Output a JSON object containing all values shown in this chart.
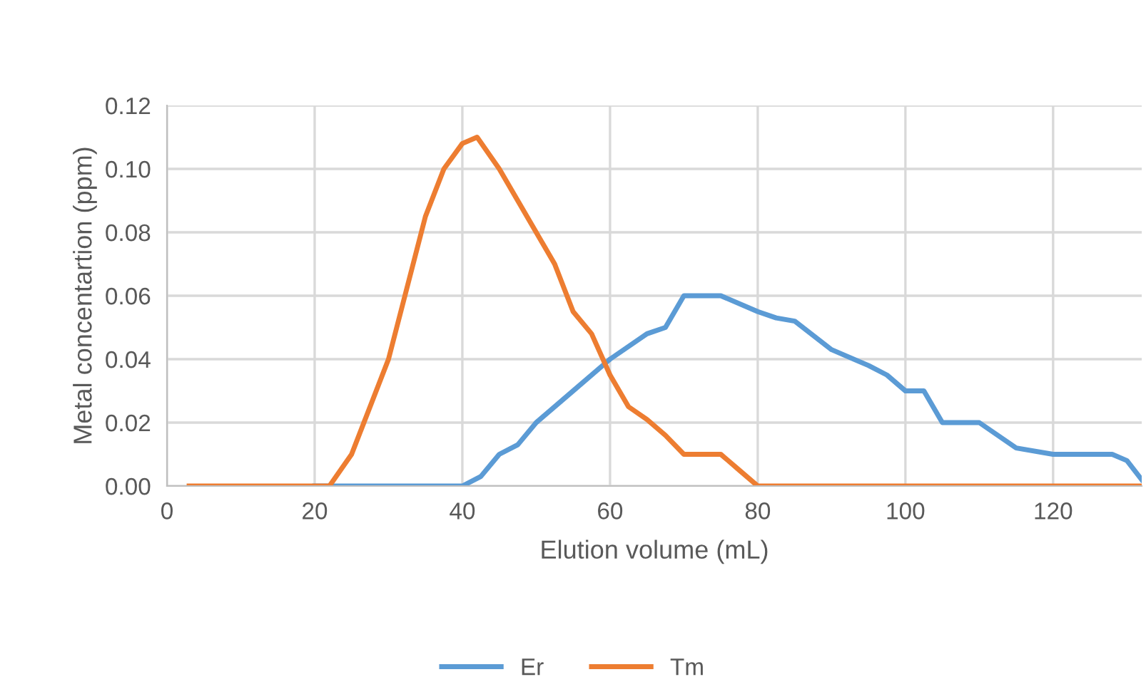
{
  "chart_data": {
    "type": "line",
    "xlabel": "Elution volume (mL)",
    "ylabel": "Metal concentartion (ppm)",
    "xlim": [
      0,
      132
    ],
    "xticks": [
      0,
      20,
      40,
      60,
      80,
      100,
      120
    ],
    "ylim": [
      0,
      0.12
    ],
    "yticks": [
      {
        "value": 0,
        "label": "0.00"
      },
      {
        "value": 0.02,
        "label": "0.02"
      },
      {
        "value": 0.04,
        "label": "0.04"
      },
      {
        "value": 0.06,
        "label": "0.06"
      },
      {
        "value": 0.08,
        "label": "0.08"
      },
      {
        "value": 0.1,
        "label": "0.10"
      },
      {
        "value": 0.12,
        "label": "0.12"
      }
    ],
    "grid": true,
    "legend": "bottom",
    "marker": "none",
    "line_style": "solid",
    "series": [
      {
        "name": "Er",
        "color": "#5b9bd5",
        "x": [
          20,
          30,
          40,
          42.5,
          45,
          47.5,
          50,
          55,
          60,
          65,
          67.5,
          70,
          72.5,
          75,
          80,
          82.5,
          85,
          90,
          95,
          97.5,
          100,
          102.5,
          105,
          110,
          115,
          120,
          125,
          128,
          130,
          132
        ],
        "values": [
          0,
          0,
          0,
          0.003,
          0.01,
          0.013,
          0.02,
          0.03,
          0.04,
          0.048,
          0.05,
          0.06,
          0.06,
          0.06,
          0.055,
          0.053,
          0.052,
          0.043,
          0.038,
          0.035,
          0.03,
          0.03,
          0.02,
          0.02,
          0.012,
          0.01,
          0.01,
          0.01,
          0.008,
          0.002
        ]
      },
      {
        "name": "Tm",
        "color": "#ed7d31",
        "x": [
          3,
          10,
          20,
          22,
          25,
          30,
          35,
          37.5,
          40,
          42,
          45,
          50,
          52.5,
          55,
          57.5,
          60,
          62.5,
          65,
          67.5,
          70,
          72.5,
          75,
          77.5,
          80,
          90,
          100,
          110,
          120,
          132
        ],
        "values": [
          0,
          0,
          0,
          0,
          0.01,
          0.04,
          0.085,
          0.1,
          0.108,
          0.11,
          0.1,
          0.08,
          0.07,
          0.055,
          0.048,
          0.035,
          0.025,
          0.021,
          0.016,
          0.01,
          0.01,
          0.01,
          0.005,
          0,
          0,
          0,
          0,
          0,
          0
        ]
      }
    ]
  }
}
